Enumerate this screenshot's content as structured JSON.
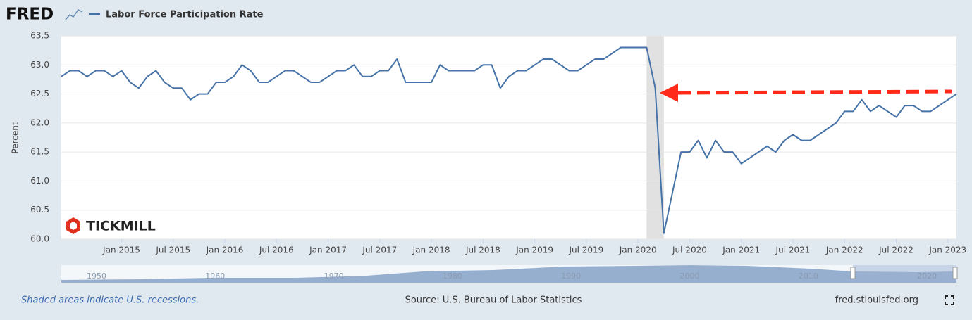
{
  "chart_data": {
    "type": "line",
    "logo": "FRED",
    "y_label": "Percent",
    "watermark": "TICKMILL",
    "note": "Shaded areas indicate U.S. recessions.",
    "source": "Source: U.S. Bureau of Labor Statistics",
    "site": "fred.stlouisfed.org",
    "x": [
      "2014-06",
      "2014-07",
      "2014-08",
      "2014-09",
      "2014-10",
      "2014-11",
      "2014-12",
      "2015-01",
      "2015-02",
      "2015-03",
      "2015-04",
      "2015-05",
      "2015-06",
      "2015-07",
      "2015-08",
      "2015-09",
      "2015-10",
      "2015-11",
      "2015-12",
      "2016-01",
      "2016-02",
      "2016-03",
      "2016-04",
      "2016-05",
      "2016-06",
      "2016-07",
      "2016-08",
      "2016-09",
      "2016-10",
      "2016-11",
      "2016-12",
      "2017-01",
      "2017-02",
      "2017-03",
      "2017-04",
      "2017-05",
      "2017-06",
      "2017-07",
      "2017-08",
      "2017-09",
      "2017-10",
      "2017-11",
      "2017-12",
      "2018-01",
      "2018-02",
      "2018-03",
      "2018-04",
      "2018-05",
      "2018-06",
      "2018-07",
      "2018-08",
      "2018-09",
      "2018-10",
      "2018-11",
      "2018-12",
      "2019-01",
      "2019-02",
      "2019-03",
      "2019-04",
      "2019-05",
      "2019-06",
      "2019-07",
      "2019-08",
      "2019-09",
      "2019-10",
      "2019-11",
      "2019-12",
      "2020-01",
      "2020-02",
      "2020-03",
      "2020-04",
      "2020-05",
      "2020-06",
      "2020-07",
      "2020-08",
      "2020-09",
      "2020-10",
      "2020-11",
      "2020-12",
      "2021-01",
      "2021-02",
      "2021-03",
      "2021-04",
      "2021-05",
      "2021-06",
      "2021-07",
      "2021-08",
      "2021-09",
      "2021-10",
      "2021-11",
      "2021-12",
      "2022-01",
      "2022-02",
      "2022-03",
      "2022-04",
      "2022-05",
      "2022-06",
      "2022-07",
      "2022-08",
      "2022-09",
      "2022-10",
      "2022-11",
      "2022-12",
      "2023-01",
      "2023-02"
    ],
    "series": [
      {
        "name": "Labor Force Participation Rate",
        "color": "#4572a7",
        "values": [
          62.8,
          62.9,
          62.9,
          62.8,
          62.9,
          62.9,
          62.8,
          62.9,
          62.7,
          62.6,
          62.8,
          62.9,
          62.7,
          62.6,
          62.6,
          62.4,
          62.5,
          62.5,
          62.7,
          62.7,
          62.8,
          63.0,
          62.9,
          62.7,
          62.7,
          62.8,
          62.9,
          62.9,
          62.8,
          62.7,
          62.7,
          62.8,
          62.9,
          62.9,
          63.0,
          62.8,
          62.8,
          62.9,
          62.9,
          63.1,
          62.7,
          62.7,
          62.7,
          62.7,
          63.0,
          62.9,
          62.9,
          62.9,
          62.9,
          63.0,
          63.0,
          62.6,
          62.8,
          62.9,
          62.9,
          63.0,
          63.1,
          63.1,
          63.0,
          62.9,
          62.9,
          63.0,
          63.1,
          63.1,
          63.2,
          63.3,
          63.3,
          63.3,
          63.3,
          62.6,
          60.1,
          60.8,
          61.5,
          61.5,
          61.7,
          61.4,
          61.7,
          61.5,
          61.5,
          61.3,
          61.4,
          61.5,
          61.6,
          61.5,
          61.7,
          61.8,
          61.7,
          61.7,
          61.8,
          61.9,
          62.0,
          62.2,
          62.2,
          62.4,
          62.2,
          62.3,
          62.2,
          62.1,
          62.3,
          62.3,
          62.2,
          62.2,
          62.3,
          62.4,
          62.5
        ]
      }
    ],
    "ylim": [
      60,
      63.5
    ],
    "yticks": [
      {
        "value": 60,
        "label": "60.0"
      },
      60.5,
      {
        "value": 61,
        "label": "61.0"
      },
      61.5,
      {
        "value": 62,
        "label": "62.0"
      },
      62.5,
      {
        "value": 63,
        "label": "63.0"
      },
      63.5
    ],
    "xticks": [
      {
        "value": "2015-01",
        "label": "Jan 2015"
      },
      {
        "value": "2015-07",
        "label": "Jul 2015"
      },
      {
        "value": "2016-01",
        "label": "Jan 2016"
      },
      {
        "value": "2016-07",
        "label": "Jul 2016"
      },
      {
        "value": "2017-01",
        "label": "Jan 2017"
      },
      {
        "value": "2017-07",
        "label": "Jul 2017"
      },
      {
        "value": "2018-01",
        "label": "Jan 2018"
      },
      {
        "value": "2018-07",
        "label": "Jul 2018"
      },
      {
        "value": "2019-01",
        "label": "Jan 2019"
      },
      {
        "value": "2019-07",
        "label": "Jul 2019"
      },
      {
        "value": "2020-01",
        "label": "Jan 2020"
      },
      {
        "value": "2020-07",
        "label": "Jul 2020"
      },
      {
        "value": "2021-01",
        "label": "Jan 2021"
      },
      {
        "value": "2021-07",
        "label": "Jul 2021"
      },
      {
        "value": "2022-01",
        "label": "Jan 2022"
      },
      {
        "value": "2022-07",
        "label": "Jul 2022"
      },
      {
        "value": "2023-01",
        "label": "Jan 2023"
      }
    ],
    "grid": true,
    "recessions": [
      [
        "2020-02",
        "2020-04"
      ]
    ],
    "navigator_ticks": [
      1950,
      1960,
      1970,
      1980,
      1990,
      2000,
      2010,
      2020
    ]
  }
}
